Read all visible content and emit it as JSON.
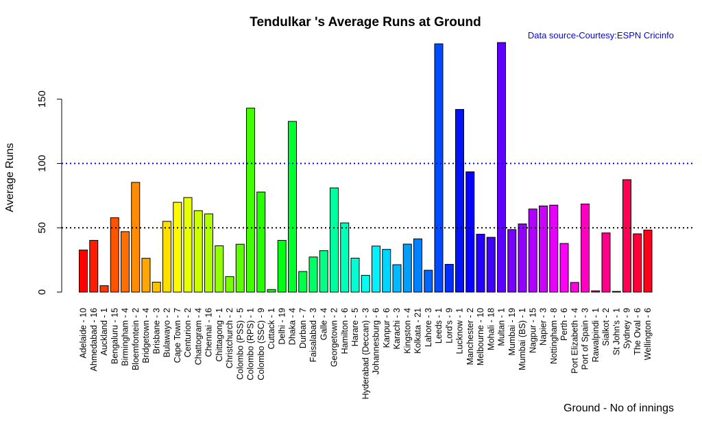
{
  "chart_data": {
    "type": "bar",
    "title": "Tendulkar 's Average Runs at Ground",
    "source_note": "Data source-Courtesy:ESPN Cricinfo",
    "xlabel": "Ground - No of innings",
    "ylabel": "Average Runs",
    "ylim": [
      0,
      200
    ],
    "yticks": [
      0,
      50,
      100,
      150
    ],
    "reference_lines": [
      {
        "value": 100,
        "color": "#0000ff",
        "style": "dotted"
      },
      {
        "value": 50,
        "color": "#000000",
        "style": "dotted"
      }
    ],
    "categories": [
      "Adelaide - 10",
      "Ahmedabad - 16",
      "Auckland - 1",
      "Bengaluru - 15",
      "Birmingham - 4",
      "Bloemfontein - 2",
      "Bridgetown - 4",
      "Brisbane - 3",
      "Bulawayo - 2",
      "Cape Town - 7",
      "Centurion - 2",
      "Chattogram - 4",
      "Chennai - 16",
      "Chittagong - 1",
      "Christchurch - 2",
      "Colombo (PSS) - 5",
      "Colombo (RPS) - 1",
      "Colombo (SSC) - 9",
      "Cuttack - 1",
      "Delhi - 19",
      "Dhaka - 4",
      "Durban - 7",
      "Faisalabad - 3",
      "Galle - 4",
      "Georgetown - 2",
      "Hamilton - 6",
      "Harare - 5",
      "Hyderabad (Deccan) - 3",
      "Johannesburg - 6",
      "Kanpur - 6",
      "Karachi - 3",
      "Kingston - 4",
      "Kolkata - 21",
      "Lahore - 3",
      "Leeds - 1",
      "Lord's - 9",
      "Lucknow - 1",
      "Manchester - 2",
      "Melbourne - 10",
      "Mohali - 18",
      "Multan - 1",
      "Mumbai - 19",
      "Mumbai (BS) - 1",
      "Nagpur - 15",
      "Napier - 3",
      "Nottingham - 8",
      "Perth - 6",
      "Port Elizabeth - 4",
      "Port of Spain - 3",
      "Rawalpindi - 1",
      "Sialkot - 2",
      "St John's - 1",
      "Sydney - 9",
      "The Oval - 6",
      "Wellington - 6"
    ],
    "values": [
      32.7,
      40.2,
      5,
      57.8,
      47.0,
      85.3,
      26.3,
      7.7,
      55.0,
      69.8,
      73.5,
      63.3,
      60.8,
      36,
      12,
      37.2,
      143,
      77.8,
      2,
      40.2,
      132.7,
      16,
      27.3,
      32.2,
      81,
      53.8,
      26.4,
      13,
      35.8,
      33.2,
      21.3,
      37.3,
      41.4,
      17,
      193,
      21.6,
      142,
      93.5,
      45.0,
      42.6,
      194,
      48.6,
      53,
      64.6,
      67.0,
      67.6,
      37.8,
      7.5,
      68.5,
      1,
      46,
      0,
      87.4,
      45.3,
      48.2
    ]
  }
}
